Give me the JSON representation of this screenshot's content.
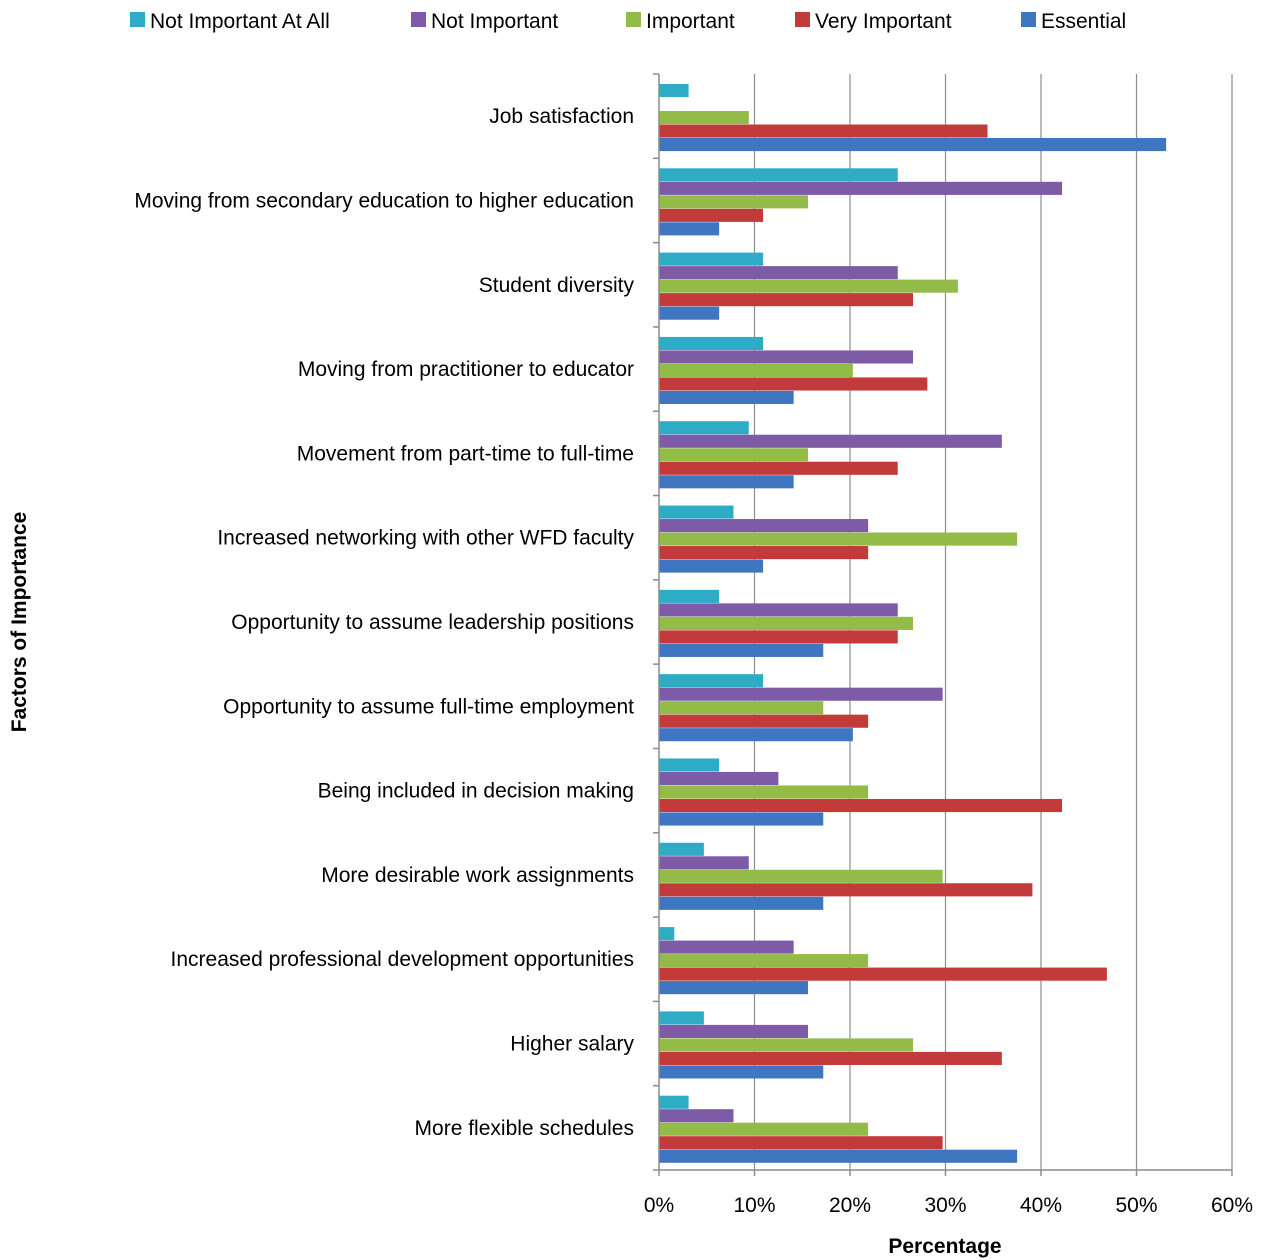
{
  "chart_data": {
    "type": "bar",
    "orientation": "horizontal",
    "title": "",
    "xlabel": "Percentage",
    "ylabel": "Factors of Importance",
    "xlim": [
      0,
      60
    ],
    "xticks": [
      0,
      10,
      20,
      30,
      40,
      50,
      60
    ],
    "tick_format": "%",
    "grid": true,
    "legend_position": "top",
    "categories": [
      "Job satisfaction",
      "Moving from secondary education to higher education",
      "Student diversity",
      "Moving from practitioner to educator",
      "Movement from part-time to full-time",
      "Increased networking with other WFD faculty",
      "Opportunity to assume leadership positions",
      "Opportunity to assume full-time employment",
      "Being included in decision making",
      "More desirable work assignments",
      "Increased professional development opportunities",
      "Higher salary",
      "More flexible schedules"
    ],
    "series": [
      {
        "name": "Not Important At All",
        "color": "#2EACC6",
        "values": [
          3.1,
          25,
          10.9,
          10.9,
          9.4,
          7.8,
          6.3,
          10.9,
          6.3,
          4.7,
          1.6,
          4.7,
          3.1
        ]
      },
      {
        "name": "Not Important",
        "color": "#7D5BA6",
        "values": [
          0,
          42.2,
          25,
          26.6,
          35.9,
          21.9,
          25,
          29.7,
          12.5,
          9.4,
          14.1,
          15.6,
          7.8
        ]
      },
      {
        "name": "Important",
        "color": "#93BB48",
        "values": [
          9.4,
          15.6,
          31.3,
          20.3,
          15.6,
          37.5,
          26.6,
          17.2,
          21.9,
          29.7,
          21.9,
          26.6,
          21.9
        ]
      },
      {
        "name": "Very Important",
        "color": "#C33A3A",
        "values": [
          34.4,
          10.9,
          26.6,
          28.1,
          25,
          21.9,
          25,
          21.9,
          42.2,
          39.1,
          46.9,
          35.9,
          29.7
        ]
      },
      {
        "name": "Essential",
        "color": "#3E76C1",
        "values": [
          53.1,
          6.3,
          6.3,
          14.1,
          14.1,
          10.9,
          17.2,
          20.3,
          17.2,
          17.2,
          15.6,
          17.2,
          37.5
        ]
      }
    ]
  }
}
